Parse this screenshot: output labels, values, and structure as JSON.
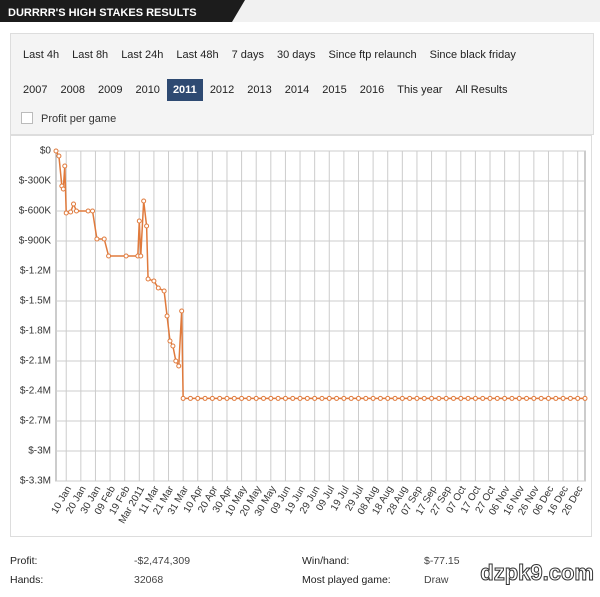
{
  "header": {
    "title": "DURRRR'S HIGH STAKES RESULTS"
  },
  "filters": {
    "periods": [
      "Last 4h",
      "Last 8h",
      "Last 24h",
      "Last 48h",
      "7 days",
      "30 days",
      "Since ftp relaunch",
      "Since black friday"
    ],
    "years": [
      "2007",
      "2008",
      "2009",
      "2010",
      "2011",
      "2012",
      "2013",
      "2014",
      "2015",
      "2016",
      "This year",
      "All Results"
    ],
    "selected_year": 4,
    "checkbox_label": "Profit per game"
  },
  "chart_data": {
    "type": "line",
    "grid": true,
    "xlim": [
      "03 Jan",
      "31 Dec"
    ],
    "xticks": [
      "10 Jan",
      "20 Jan",
      "30 Jan",
      "09 Feb",
      "19 Feb",
      {
        "value": "01 Mar",
        "label": "Mar 2011"
      },
      "11 Mar",
      "21 Mar",
      "31 Mar",
      "10 Apr",
      "20 Apr",
      "30 Apr",
      "10 May",
      "20 May",
      "30 May",
      "09 Jun",
      "19 Jun",
      "29 Jun",
      "09 Jul",
      "19 Jul",
      "29 Jul",
      "08 Aug",
      "18 Aug",
      "28 Aug",
      "07 Sep",
      "17 Sep",
      "27 Sep",
      "07 Oct",
      "17 Oct",
      "27 Oct",
      "06 Nov",
      "16 Nov",
      "26 Nov",
      "06 Dec",
      "16 Dec",
      "26 Dec"
    ],
    "ylim": [
      -3300000,
      0
    ],
    "yticks": [
      {
        "value": 0,
        "label": "$0"
      },
      {
        "value": -300000,
        "label": "$-300K"
      },
      {
        "value": -600000,
        "label": "$-600K"
      },
      {
        "value": -900000,
        "label": "$-900K"
      },
      {
        "value": -1200000,
        "label": "$-1.2M"
      },
      {
        "value": -1500000,
        "label": "$-1.5M"
      },
      {
        "value": -1800000,
        "label": "$-1.8M"
      },
      {
        "value": -2100000,
        "label": "$-2.1M"
      },
      {
        "value": -2400000,
        "label": "$-2.4M"
      },
      {
        "value": -2700000,
        "label": "$-2.7M"
      },
      {
        "value": -3000000,
        "label": "$-3M"
      },
      {
        "value": -3300000,
        "label": "$-3.3M"
      }
    ],
    "series": [
      {
        "color": "#e07a3c",
        "x": [
          "03 Jan",
          "05 Jan",
          "07 Jan",
          "08 Jan",
          "09 Jan",
          "10 Jan",
          "13 Jan",
          "15 Jan",
          "17 Jan",
          "25 Jan",
          "28 Jan",
          "31 Jan",
          "05 Feb",
          "08 Feb",
          "20 Feb",
          "28 Feb",
          "01 Mar",
          "02 Mar",
          "04 Mar",
          "06 Mar",
          "07 Mar",
          "11 Mar",
          "14 Mar",
          "18 Mar",
          "20 Mar",
          "22 Mar",
          "24 Mar",
          "26 Mar",
          "28 Mar",
          "30 Mar",
          "31 Mar",
          "05 Apr",
          "10 Apr",
          "15 Apr",
          "20 Apr",
          "25 Apr",
          "30 Apr",
          "05 May",
          "10 May",
          "15 May",
          "20 May",
          "25 May",
          "30 May",
          "04 Jun",
          "09 Jun",
          "14 Jun",
          "19 Jun",
          "24 Jun",
          "29 Jun",
          "04 Jul",
          "09 Jul",
          "14 Jul",
          "19 Jul",
          "24 Jul",
          "29 Jul",
          "03 Aug",
          "08 Aug",
          "13 Aug",
          "18 Aug",
          "23 Aug",
          "28 Aug",
          "02 Sep",
          "07 Sep",
          "12 Sep",
          "17 Sep",
          "22 Sep",
          "27 Sep",
          "02 Oct",
          "07 Oct",
          "12 Oct",
          "17 Oct",
          "22 Oct",
          "27 Oct",
          "01 Nov",
          "06 Nov",
          "11 Nov",
          "16 Nov",
          "21 Nov",
          "26 Nov",
          "01 Dec",
          "06 Dec",
          "11 Dec",
          "16 Dec",
          "21 Dec",
          "26 Dec",
          "31 Dec"
        ],
        "values": [
          0,
          -50000,
          -350000,
          -380000,
          -150000,
          -620000,
          -610000,
          -530000,
          -600000,
          -600000,
          -600000,
          -880000,
          -880000,
          -1050000,
          -1050000,
          -1050000,
          -700000,
          -1050000,
          -500000,
          -750000,
          -1280000,
          -1300000,
          -1370000,
          -1400000,
          -1650000,
          -1900000,
          -1950000,
          -2100000,
          -2150000,
          -1600000,
          -2474309,
          -2474309,
          -2474309,
          -2474309,
          -2474309,
          -2474309,
          -2474309,
          -2474309,
          -2474309,
          -2474309,
          -2474309,
          -2474309,
          -2474309,
          -2474309,
          -2474309,
          -2474309,
          -2474309,
          -2474309,
          -2474309,
          -2474309,
          -2474309,
          -2474309,
          -2474309,
          -2474309,
          -2474309,
          -2474309,
          -2474309,
          -2474309,
          -2474309,
          -2474309,
          -2474309,
          -2474309,
          -2474309,
          -2474309,
          -2474309,
          -2474309,
          -2474309,
          -2474309,
          -2474309,
          -2474309,
          -2474309,
          -2474309,
          -2474309,
          -2474309,
          -2474309,
          -2474309,
          -2474309,
          -2474309,
          -2474309,
          -2474309,
          -2474309,
          -2474309,
          -2474309,
          -2474309,
          -2474309,
          -2474309
        ]
      }
    ]
  },
  "stats": {
    "profit_label": "Profit:",
    "profit": "-$2,474,309",
    "hands_label": "Hands:",
    "hands": "32068",
    "winhand_label": "Win/hand:",
    "winhand": "$-77.15",
    "game_label": "Most played game:",
    "game": "Draw"
  },
  "watermark": "dzpk9.com"
}
